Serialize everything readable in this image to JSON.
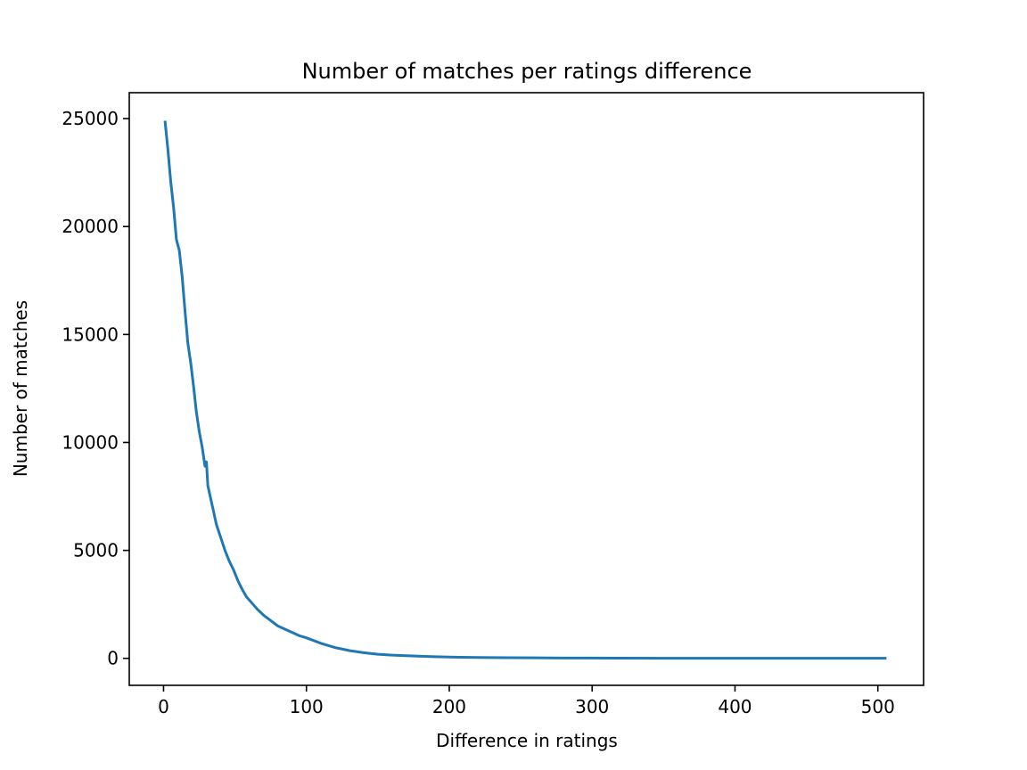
{
  "chart_data": {
    "type": "line",
    "title": "Number of matches per ratings difference",
    "xlabel": "Difference in ratings",
    "ylabel": "Number of matches",
    "xlim": [
      -24,
      532
    ],
    "ylim": [
      -1250,
      26200
    ],
    "xticks": [
      0,
      100,
      200,
      300,
      400,
      500
    ],
    "xtick_labels": [
      "0",
      "100",
      "200",
      "300",
      "400",
      "500"
    ],
    "yticks": [
      0,
      5000,
      10000,
      15000,
      20000,
      25000
    ],
    "ytick_labels": [
      "0",
      "5000",
      "10000",
      "15000",
      "20000",
      "25000"
    ],
    "grid": false,
    "legend": "none",
    "color": "#1f77b4",
    "series": [
      {
        "x": [
          1,
          3,
          5,
          7,
          9,
          11,
          13,
          15,
          17,
          19,
          21,
          23,
          25,
          27,
          29,
          30,
          31,
          33,
          35,
          37,
          40,
          43,
          46,
          49,
          52,
          55,
          58,
          62,
          66,
          70,
          75,
          80,
          85,
          90,
          95,
          100,
          110,
          120,
          130,
          140,
          150,
          160,
          170,
          180,
          190,
          200,
          220,
          240,
          260,
          280,
          300,
          320,
          350,
          400,
          450,
          506
        ],
        "y": [
          24900,
          23600,
          22100,
          20900,
          19400,
          18900,
          17700,
          16100,
          14600,
          13700,
          12600,
          11400,
          10500,
          9800,
          8900,
          9100,
          8000,
          7400,
          6800,
          6200,
          5600,
          5000,
          4500,
          4100,
          3600,
          3200,
          2850,
          2550,
          2250,
          2000,
          1750,
          1500,
          1350,
          1200,
          1050,
          950,
          700,
          500,
          360,
          260,
          190,
          150,
          120,
          95,
          75,
          60,
          42,
          30,
          22,
          16,
          12,
          9,
          6,
          4,
          3,
          2
        ]
      }
    ]
  }
}
